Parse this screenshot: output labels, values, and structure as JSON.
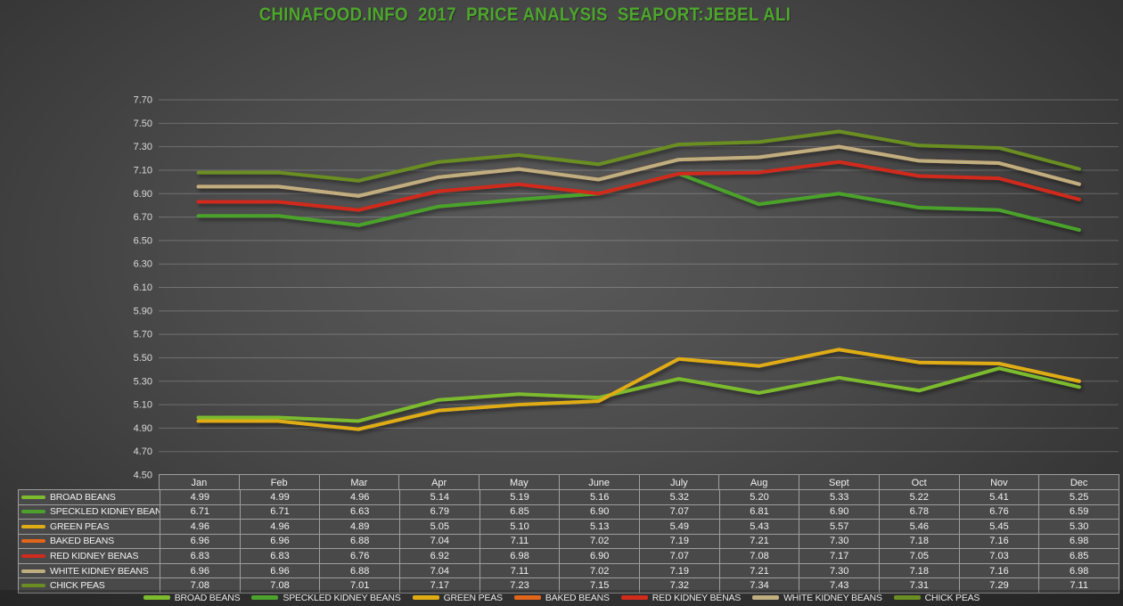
{
  "title": "CHINAFOOD.INFO  2017  PRICE ANALYSIS  SEAPORT:JEBEL ALI",
  "title_color": "#4DA72C",
  "chart_data": {
    "type": "line",
    "title": "CHINAFOOD.INFO 2017 PRICE ANALYSIS SEAPORT:JEBEL ALI",
    "x": [
      "Jan",
      "Feb",
      "Mar",
      "Apr",
      "May",
      "June",
      "July",
      "Aug",
      "Sept",
      "Oct",
      "Nov",
      "Dec"
    ],
    "ylim": [
      4.5,
      7.7
    ],
    "ytick_step": 0.2,
    "ytick_format_decimals": 2,
    "grid": true,
    "legend_position": "bottom",
    "value_decimals": 2,
    "series": [
      {
        "name": "BROAD BEANS",
        "color": "#7CBA2E",
        "values": [
          4.99,
          4.99,
          4.96,
          5.14,
          5.19,
          5.16,
          5.32,
          5.2,
          5.33,
          5.22,
          5.41,
          5.25
        ]
      },
      {
        "name": "SPECKLED KIDNEY BEANS",
        "color": "#4CA22C",
        "values": [
          6.71,
          6.71,
          6.63,
          6.79,
          6.85,
          6.9,
          7.07,
          6.81,
          6.9,
          6.78,
          6.76,
          6.59
        ]
      },
      {
        "name": "GREEN PEAS",
        "color": "#DFAC14",
        "values": [
          4.96,
          4.96,
          4.89,
          5.05,
          5.1,
          5.13,
          5.49,
          5.43,
          5.57,
          5.46,
          5.45,
          5.3
        ]
      },
      {
        "name": "BAKED BEANS",
        "color": "#E2651C",
        "values": [
          6.96,
          6.96,
          6.88,
          7.04,
          7.11,
          7.02,
          7.19,
          7.21,
          7.3,
          7.18,
          7.16,
          6.98
        ]
      },
      {
        "name": "RED KIDNEY BENAS",
        "color": "#D12B1B",
        "values": [
          6.83,
          6.83,
          6.76,
          6.92,
          6.98,
          6.9,
          7.07,
          7.08,
          7.17,
          7.05,
          7.03,
          6.85
        ]
      },
      {
        "name": "WHITE KIDNEY BEANS",
        "color": "#BFAE80",
        "values": [
          6.96,
          6.96,
          6.88,
          7.04,
          7.11,
          7.02,
          7.19,
          7.21,
          7.3,
          7.18,
          7.16,
          6.98
        ]
      },
      {
        "name": "CHICK PEAS",
        "color": "#6B8E23",
        "values": [
          7.08,
          7.08,
          7.01,
          7.17,
          7.23,
          7.15,
          7.32,
          7.34,
          7.43,
          7.31,
          7.29,
          7.11
        ]
      }
    ]
  }
}
